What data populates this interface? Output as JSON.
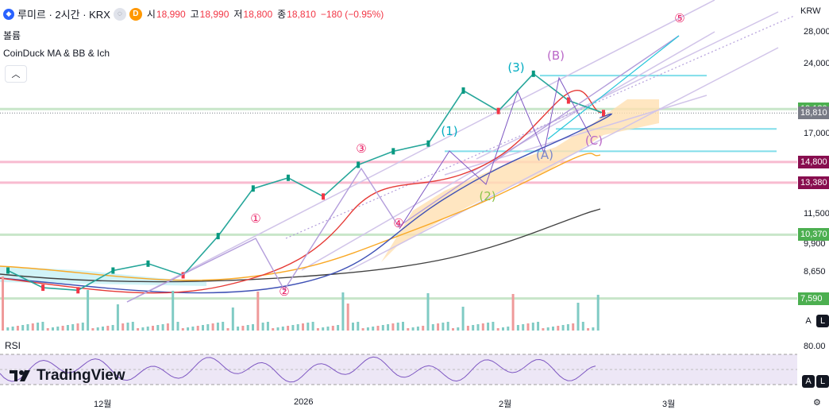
{
  "header": {
    "symbol": "루미르 · 2시간 · KRX",
    "badge_d": "D",
    "open_k": "시",
    "open_v": "18,990",
    "high_k": "고",
    "high_v": "18,990",
    "low_k": "저",
    "low_v": "18,800",
    "close_k": "종",
    "close_v": "18,810",
    "change": "−180 (−0.95%)"
  },
  "indicators": {
    "volume_label": "볼륨",
    "ma_label": "CoinDuck MA & BB & Ich",
    "collapse_icon": "chevron-up-icon"
  },
  "price_axis": {
    "currency": "KRW",
    "ticks": [
      {
        "label": "28,000",
        "value": 28000
      },
      {
        "label": "24,000",
        "value": 24000
      },
      {
        "label": "17,000",
        "value": 17000
      },
      {
        "label": "11,500",
        "value": 11500
      },
      {
        "label": "9,900",
        "value": 9900
      },
      {
        "label": "8,650",
        "value": 8650
      }
    ],
    "tags": [
      {
        "label": "19,180",
        "value": 19180,
        "color": "#4caf50"
      },
      {
        "label": "18,810",
        "value": 18810,
        "color": "#787b86"
      },
      {
        "label": "14,800",
        "value": 14800,
        "color": "#880e4f"
      },
      {
        "label": "13,380",
        "value": 13380,
        "color": "#880e4f"
      },
      {
        "label": "10,370",
        "value": 10370,
        "color": "#4caf50"
      },
      {
        "label": "7,590",
        "value": 7590,
        "color": "#4caf50"
      }
    ]
  },
  "time_axis": [
    "12월",
    "2026",
    "2월",
    "3월"
  ],
  "rsi": {
    "label": "RSI",
    "tick": "80.00"
  },
  "logo": {
    "text": "TradingView"
  },
  "buttons": {
    "auto": "A",
    "log": "L"
  },
  "chart_data": {
    "type": "line",
    "series": [
      {
        "name": "",
        "x": [
          "12/01",
          "12/05",
          "12/10",
          "12/15",
          "12/20",
          "12/26",
          "01/02",
          "01/08",
          "01/12",
          "01/16",
          "01/21",
          "01/26",
          "01/30",
          "02/04",
          "02/06",
          "02/11",
          "02/16",
          "02/20"
        ],
        "values": [
          8700,
          8000,
          7900,
          8700,
          9000,
          8500,
          10300,
          13000,
          13700,
          12500,
          14600,
          15600,
          16200,
          21000,
          19000,
          22800,
          20000,
          18810
        ]
      }
    ],
    "horizontal_levels": [
      19180,
      18810,
      14800,
      13380,
      10370,
      7590
    ],
    "wave_labels": [
      "①",
      "②",
      "③",
      "④",
      "⑤",
      "(1)",
      "(2)",
      "(3)",
      "(A)",
      "(B)",
      "(C)"
    ],
    "ylim": [
      7000,
      29000
    ],
    "log_scale": true,
    "last_price": 18810
  }
}
